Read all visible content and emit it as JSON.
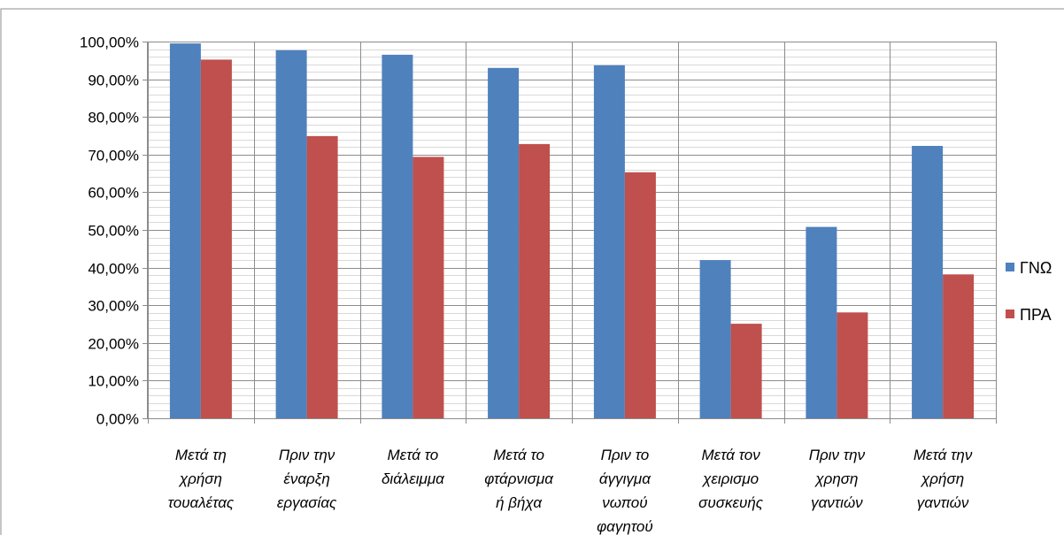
{
  "chart_data": {
    "type": "bar",
    "categories": [
      [
        "Μετά τη",
        "χρήση",
        "τουαλέτας"
      ],
      [
        "Πριν την",
        "έναρξη",
        "εργασίας"
      ],
      [
        "Μετά το",
        "διάλειμμα"
      ],
      [
        "Μετά το",
        "φτάρνισμα",
        "ή βήχα"
      ],
      [
        "Πριν το",
        "άγγιγμα",
        "νωπού",
        "φαγητού"
      ],
      [
        "Μετά τον",
        "χειρισμο",
        "συσκευής"
      ],
      [
        "Πριν την",
        "χρηση",
        "γαντιών"
      ],
      [
        "Μετά την",
        "χρήση",
        "γαντιών"
      ]
    ],
    "series": [
      {
        "name": "ΓΝΩ",
        "color": "#4f81bd",
        "values": [
          99.5,
          97.7,
          96.5,
          93.0,
          93.7,
          42.0,
          50.8,
          72.3
        ]
      },
      {
        "name": "ΠΡΑ",
        "color": "#c0504d",
        "values": [
          95.2,
          74.9,
          69.4,
          72.8,
          65.3,
          25.1,
          28.1,
          38.2
        ]
      }
    ],
    "y_tick_labels": [
      "0,00%",
      "10,00%",
      "20,00%",
      "30,00%",
      "40,00%",
      "50,00%",
      "60,00%",
      "70,00%",
      "80,00%",
      "90,00%",
      "100,00%"
    ],
    "ylim": [
      0,
      100
    ],
    "y_major_step": 10,
    "y_minor_step": 2,
    "grid": true,
    "legend_position": "right",
    "title": "",
    "xlabel": "",
    "ylabel": ""
  }
}
